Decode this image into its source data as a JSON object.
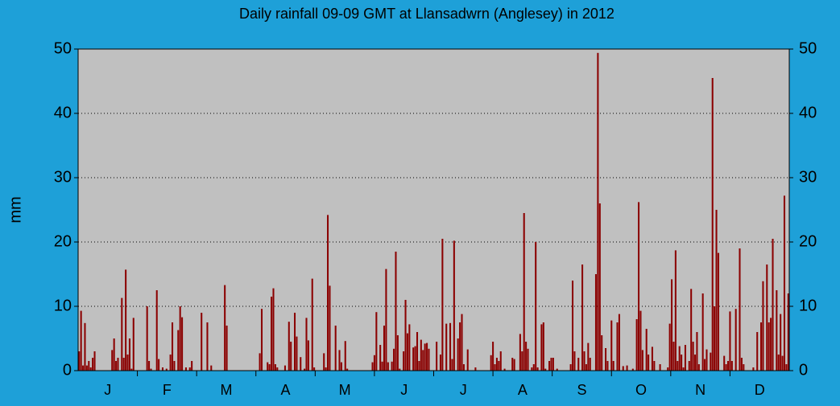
{
  "chart_data": {
    "type": "bar",
    "title": "Daily rainfall 09-09 GMT at Llansadwrn (Anglesey) in 2012",
    "y_label": "mm",
    "color": "#8b0000",
    "grid": true,
    "right_axis": true,
    "month_labels": [
      "J",
      "F",
      "M",
      "A",
      "M",
      "J",
      "J",
      "A",
      "S",
      "O",
      "N",
      "D"
    ],
    "ylim": [
      0,
      50
    ],
    "yticks": [
      0,
      10,
      20,
      30,
      40,
      50
    ],
    "values": [
      3,
      9.3,
      0.8,
      7.4,
      0.8,
      1.5,
      0.5,
      2,
      3,
      0,
      0,
      0,
      0,
      0,
      0,
      0,
      0,
      3.2,
      5,
      1.5,
      2,
      0,
      11.3,
      2,
      15.7,
      2.5,
      5,
      0.3,
      8.2,
      0,
      0,
      0,
      0,
      0,
      0,
      10,
      1.5,
      0.3,
      0,
      0,
      12.5,
      1.8,
      0,
      0.5,
      0,
      0.3,
      0,
      2.5,
      7.5,
      1.5,
      0,
      6.3,
      10,
      8.3,
      0,
      0.5,
      0,
      0.5,
      1.5,
      0,
      0,
      0,
      0,
      9,
      0,
      0,
      7.5,
      0,
      0.8,
      0,
      0,
      0,
      0,
      0,
      0,
      13.3,
      7,
      0,
      0,
      0,
      0,
      0,
      0,
      0,
      0,
      0,
      0,
      0,
      0,
      0,
      0,
      0,
      0,
      2.7,
      9.6,
      0,
      0,
      1.3,
      1,
      11.5,
      12.8,
      1,
      0.5,
      0,
      0,
      0,
      0.8,
      0,
      7.6,
      4.5,
      0,
      9,
      5.3,
      0,
      2.1,
      0,
      0.3,
      8.2,
      4.7,
      0,
      14.3,
      0.5,
      0,
      0,
      0,
      0,
      2.7,
      0.5,
      24.2,
      13.2,
      0,
      0,
      7,
      0,
      3.2,
      1.3,
      0,
      4.6,
      0.3,
      0,
      0,
      0,
      0,
      0,
      0,
      0,
      0,
      0,
      0,
      0,
      0,
      1.3,
      2.4,
      9.1,
      0,
      4,
      1.4,
      7,
      15.8,
      1.3,
      0,
      1.4,
      3.4,
      18.5,
      5.5,
      0.3,
      0,
      3,
      11,
      5.8,
      7.2,
      0,
      3.6,
      3.8,
      6,
      1.5,
      4.8,
      3.2,
      4.2,
      4.3,
      3.4,
      0,
      0,
      0,
      4.5,
      0,
      2.5,
      20.5,
      0,
      7.3,
      0,
      7.4,
      1.8,
      20.2,
      0,
      5,
      7.5,
      8.8,
      1,
      0,
      3.3,
      0,
      0,
      0,
      0.5,
      0,
      0,
      0,
      0,
      0,
      0,
      0,
      2.4,
      4.5,
      1,
      2,
      1.5,
      3,
      0,
      0.3,
      0,
      0,
      0,
      2,
      1.8,
      0,
      0,
      5.7,
      3,
      24.5,
      4.5,
      3.4,
      0,
      0.5,
      1,
      20,
      0.5,
      0,
      7.2,
      7.5,
      0.3,
      0,
      1.5,
      2,
      2,
      0,
      0.3,
      0,
      0,
      0,
      0,
      0,
      0,
      1,
      14,
      3,
      0,
      2,
      0,
      16.5,
      3,
      1,
      4.3,
      2,
      0,
      0,
      15,
      49.4,
      26,
      5.5,
      0,
      3.5,
      1.5,
      0,
      7.8,
      1.5,
      0,
      7.5,
      8.8,
      0,
      0.7,
      0,
      0.8,
      0,
      0,
      0.3,
      0,
      8,
      26.2,
      9.3,
      3.2,
      0,
      6.5,
      2.5,
      0,
      3.7,
      1.5,
      0,
      0,
      1,
      0,
      0,
      0,
      0.5,
      7.3,
      14.2,
      4.5,
      18.7,
      1.5,
      3.8,
      2.5,
      0.5,
      4,
      0,
      1.5,
      12.7,
      4.5,
      2.5,
      6,
      1,
      0,
      12,
      1.8,
      3.3,
      0,
      2.8,
      45.5,
      10,
      25,
      18.3,
      0,
      0,
      2.3,
      1,
      1.5,
      9.2,
      1.5,
      0,
      9.6,
      0,
      19,
      2,
      1,
      0,
      0,
      0,
      0,
      0.5,
      0,
      6,
      0,
      7.5,
      13.9,
      0,
      16.5,
      7.5,
      8.2,
      20.5,
      0,
      12.5,
      2.5,
      8.8,
      2.3,
      27.2,
      1,
      12
    ]
  }
}
